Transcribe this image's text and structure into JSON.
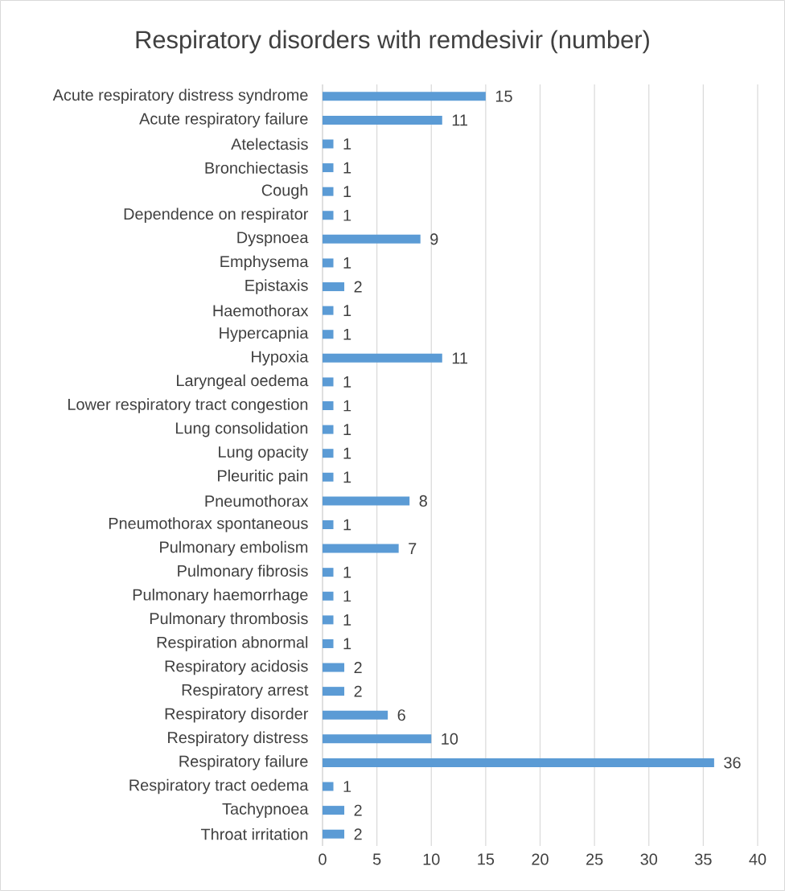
{
  "chart_data": {
    "type": "bar",
    "orientation": "horizontal",
    "title": "Respiratory disorders with remdesivir (number)",
    "categories": [
      "Acute respiratory distress syndrome",
      "Acute respiratory failure",
      "Atelectasis",
      "Bronchiectasis",
      "Cough",
      "Dependence on respirator",
      "Dyspnoea",
      "Emphysema",
      "Epistaxis",
      "Haemothorax",
      "Hypercapnia",
      "Hypoxia",
      "Laryngeal oedema",
      "Lower respiratory tract congestion",
      "Lung consolidation",
      "Lung opacity",
      "Pleuritic pain",
      "Pneumothorax",
      "Pneumothorax spontaneous",
      "Pulmonary embolism",
      "Pulmonary fibrosis",
      "Pulmonary haemorrhage",
      "Pulmonary thrombosis",
      "Respiration abnormal",
      "Respiratory acidosis",
      "Respiratory arrest",
      "Respiratory disorder",
      "Respiratory distress",
      "Respiratory failure",
      "Respiratory tract oedema",
      "Tachypnoea",
      "Throat irritation"
    ],
    "values": [
      15,
      11,
      1,
      1,
      1,
      1,
      9,
      1,
      2,
      1,
      1,
      11,
      1,
      1,
      1,
      1,
      1,
      8,
      1,
      7,
      1,
      1,
      1,
      1,
      2,
      2,
      6,
      10,
      36,
      1,
      2,
      2
    ],
    "color": "#5b9bd5",
    "xlim": [
      0,
      40
    ],
    "xticks": [
      0,
      5,
      10,
      15,
      20,
      25,
      30,
      35,
      40
    ],
    "grid": "x",
    "data_labels": true
  }
}
